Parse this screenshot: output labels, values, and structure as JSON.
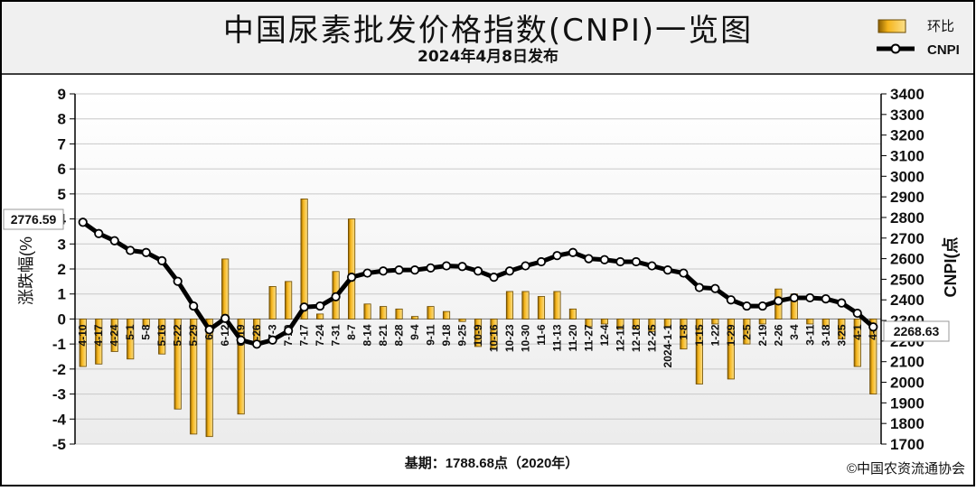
{
  "header": {
    "title": "中国尿素批发价格指数(CNPI)一览图",
    "subtitle": "2024年4月8日发布"
  },
  "footer": {
    "base_period": "基期：1788.68点（2020年）",
    "copyright": "©中国农资流通协会"
  },
  "chart_data": {
    "type": "bar+line",
    "legend": [
      "环比",
      "CNPI"
    ],
    "legend_position": "top-right",
    "ylabel_left": "涨跌幅(%",
    "ylabel_right": "CNPI(点",
    "ylim_left": [
      -5,
      9
    ],
    "ylim_right": [
      1700,
      3400
    ],
    "yticks_left": [
      "9",
      "8",
      "7",
      "6",
      "5",
      "4",
      "3",
      "2",
      "1",
      "0",
      "-1",
      "-2",
      "-3",
      "-4",
      "-5"
    ],
    "yticks_right": [
      "3400",
      "3300",
      "3200",
      "3100",
      "3000",
      "2900",
      "2800",
      "2700",
      "2600",
      "2500",
      "2400",
      "2300",
      "2200",
      "2100",
      "2000",
      "1900",
      "1800",
      "1700"
    ],
    "grid": true,
    "categories": [
      "4-10",
      "4-17",
      "4-24",
      "5-1",
      "5-8",
      "5-16",
      "5-22",
      "5-29",
      "6-5",
      "6-12",
      "6-19",
      "6-26",
      "7-3",
      "7-10",
      "7-17",
      "7-24",
      "7-31",
      "8-7",
      "8-14",
      "8-21",
      "8-28",
      "9-4",
      "9-11",
      "9-18",
      "9-25",
      "10-9",
      "10-16",
      "10-23",
      "10-30",
      "11-6",
      "11-13",
      "11-20",
      "11-27",
      "12-4",
      "12-11",
      "12-18",
      "12-25",
      "2024-1-1",
      "1-8",
      "1-15",
      "1-22",
      "1-29",
      "2-5",
      "2-19",
      "2-26",
      "3-4",
      "3-11",
      "3-18",
      "3-25",
      "4-1",
      "4-8"
    ],
    "axis_labels": [
      "4-10",
      "4-17",
      "4-24",
      "5-1",
      "5-8",
      "5-16",
      "5-22",
      "5-29",
      "6-5",
      "6-12",
      "6-19",
      "6-26",
      "7-3",
      "7-10",
      "7-17",
      "7-24",
      "7-31",
      "8-7",
      "8-14",
      "8-21",
      "8-28",
      "9-4",
      "9-11",
      "9-18",
      "9-25",
      "10-9",
      "10-16",
      "10-23",
      "10-30",
      "11-6",
      "11-13",
      "11-20",
      "11-27",
      "12-4",
      "12-11",
      "12-18",
      "12-25",
      "2024-1-1",
      "1-8",
      "1-15",
      "1-22",
      "1-29",
      "2-5",
      "2-19",
      "2-26",
      "3-4",
      "3-11",
      "3-18",
      "3-25",
      "4-1",
      "4-8"
    ],
    "series": [
      {
        "name": "环比",
        "type": "bar",
        "values": [
          -1.9,
          -1.8,
          -1.3,
          -1.6,
          -0.3,
          -1.4,
          -3.6,
          -4.6,
          -4.7,
          2.4,
          -3.8,
          -1.0,
          1.3,
          1.5,
          4.8,
          0.2,
          1.9,
          4.0,
          0.6,
          0.5,
          0.4,
          0.1,
          0.5,
          0.3,
          -0.1,
          -1.1,
          -1.2,
          1.1,
          1.1,
          0.9,
          1.1,
          0.4,
          -0.3,
          -0.2,
          -0.4,
          -0.4,
          -0.5,
          -0.3,
          -1.2,
          -2.6,
          -0.2,
          -2.4,
          -1.0,
          -0.2,
          1.2,
          1.0,
          -0.2,
          -0.3,
          -0.8,
          -1.9,
          -3.0
        ]
      },
      {
        "name": "CNPI",
        "type": "line",
        "values": [
          2776.59,
          2722,
          2687,
          2640,
          2630,
          2590,
          2490,
          2370,
          2255,
          2310,
          2205,
          2185,
          2205,
          2250,
          2365,
          2370,
          2415,
          2510,
          2530,
          2540,
          2545,
          2545,
          2555,
          2565,
          2562,
          2540,
          2510,
          2540,
          2565,
          2585,
          2615,
          2630,
          2600,
          2595,
          2585,
          2585,
          2565,
          2545,
          2530,
          2460,
          2455,
          2400,
          2370,
          2370,
          2395,
          2410,
          2410,
          2405,
          2385,
          2335,
          2268.63
        ]
      }
    ],
    "annotations": [
      "2776.59",
      "2268.63"
    ],
    "colors": {
      "bar_fill": "#f5b51c",
      "bar_side": "#8a5e00",
      "line": "#000000",
      "marker_fill": "#ffffff",
      "grid": "#c8c8c8"
    }
  }
}
